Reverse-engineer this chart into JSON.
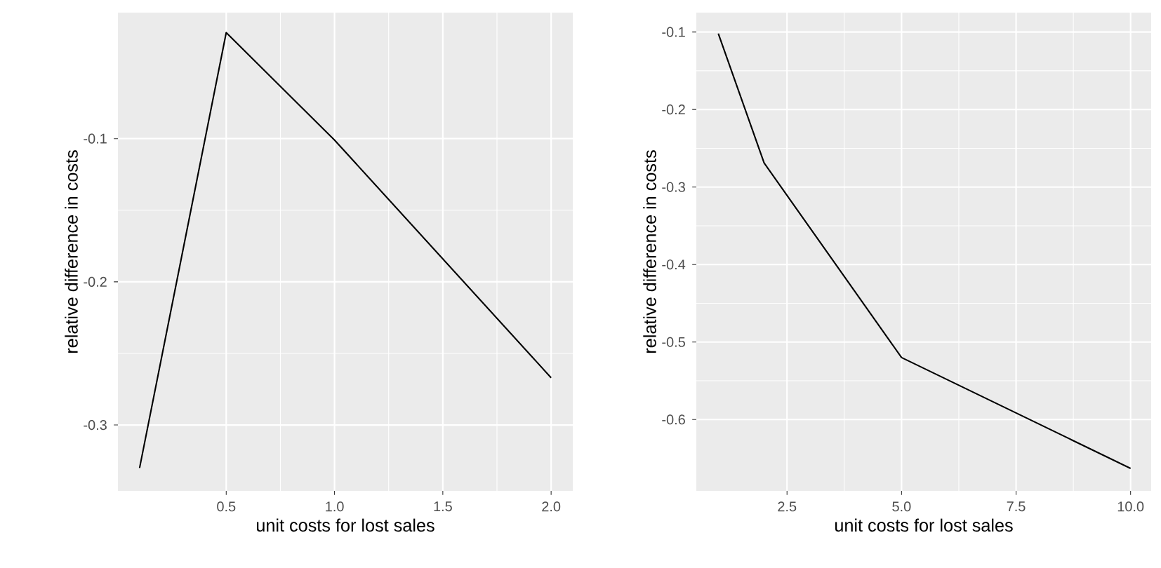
{
  "chart_data": [
    {
      "type": "line",
      "xlabel": "unit costs for lost sales",
      "ylabel": "relative difference in costs",
      "x": [
        0.1,
        0.5,
        1.0,
        2.0
      ],
      "values": [
        -0.33,
        -0.026,
        -0.101,
        -0.267
      ],
      "color": "#000000",
      "xlim": [
        0.0,
        2.1
      ],
      "ylim": [
        -0.346,
        -0.012
      ],
      "xticks": [
        0.5,
        {
          "value": 1.0,
          "label": "1.0"
        },
        1.5,
        {
          "value": 2.0,
          "label": "2.0"
        }
      ],
      "yticks": [
        -0.3,
        -0.2,
        -0.1
      ],
      "grid": true
    },
    {
      "type": "line",
      "xlabel": "unit costs for lost sales",
      "ylabel": "relative difference in costs",
      "x": [
        1,
        2,
        5,
        10
      ],
      "values": [
        -0.102,
        -0.269,
        -0.52,
        -0.663
      ],
      "color": "#000000",
      "xlim": [
        0.52,
        10.45
      ],
      "ylim": [
        -0.692,
        -0.075
      ],
      "xticks": [
        2.5,
        {
          "value": 5.0,
          "label": "5.0"
        },
        7.5,
        {
          "value": 10.0,
          "label": "10.0"
        }
      ],
      "yticks": [
        -0.6,
        -0.5,
        -0.4,
        -0.3,
        -0.2,
        -0.1
      ],
      "grid": true
    }
  ]
}
